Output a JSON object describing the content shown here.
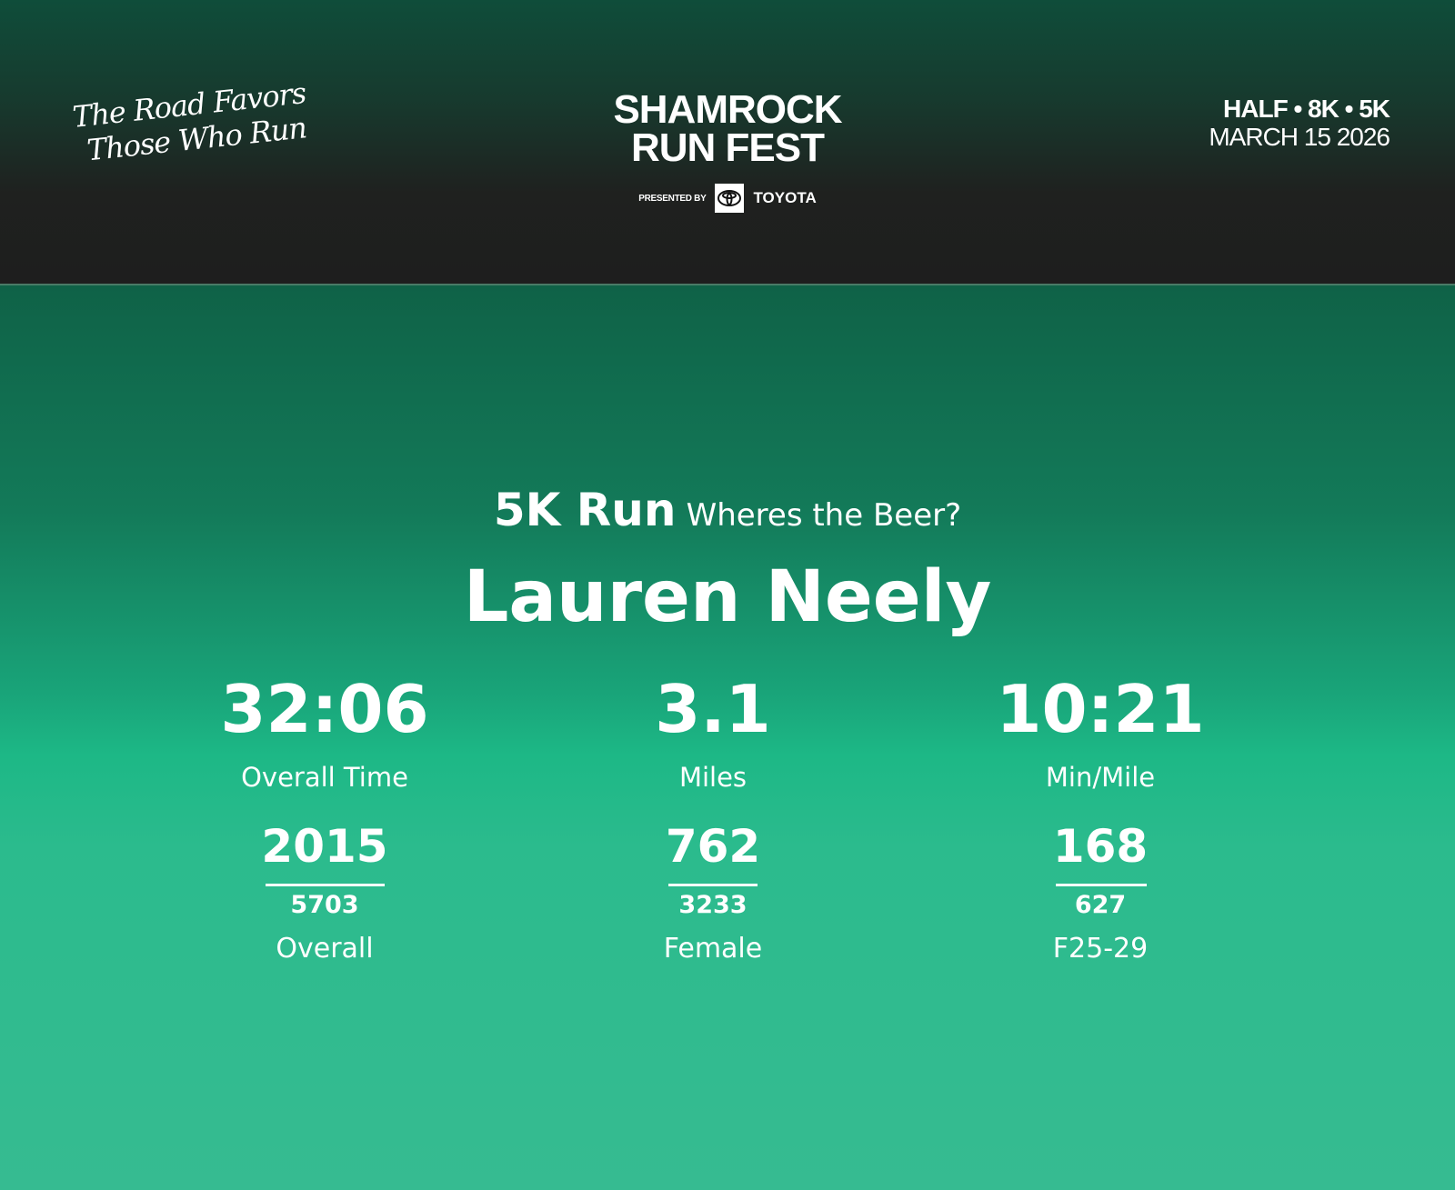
{
  "header": {
    "tagline": [
      "The Road Favors",
      "Those Who Run"
    ],
    "logo": {
      "line1": "SHAMROCK",
      "line2": "RUN FEST",
      "presented_by": "PRESENTED BY",
      "sponsor": "TOYOTA"
    },
    "races": "HALF • 8K • 5K",
    "date": "MARCH 15 2026"
  },
  "result": {
    "race": "5K Run",
    "team": "Wheres the Beer?",
    "name": "Lauren Neely",
    "stats": [
      {
        "value": "32:06",
        "label": "Overall Time"
      },
      {
        "value": "3.1",
        "label": "Miles"
      },
      {
        "value": "10:21",
        "label": "Min/Mile"
      }
    ],
    "placements": [
      {
        "place": "2015",
        "total": "5703",
        "category": "Overall"
      },
      {
        "place": "762",
        "total": "3233",
        "category": "Female"
      },
      {
        "place": "168",
        "total": "627",
        "category": "F25-29"
      }
    ]
  },
  "colors": {
    "header_top": "#0f4d3a",
    "header_bottom": "#1e1e1e",
    "main_green": "#1db886"
  }
}
